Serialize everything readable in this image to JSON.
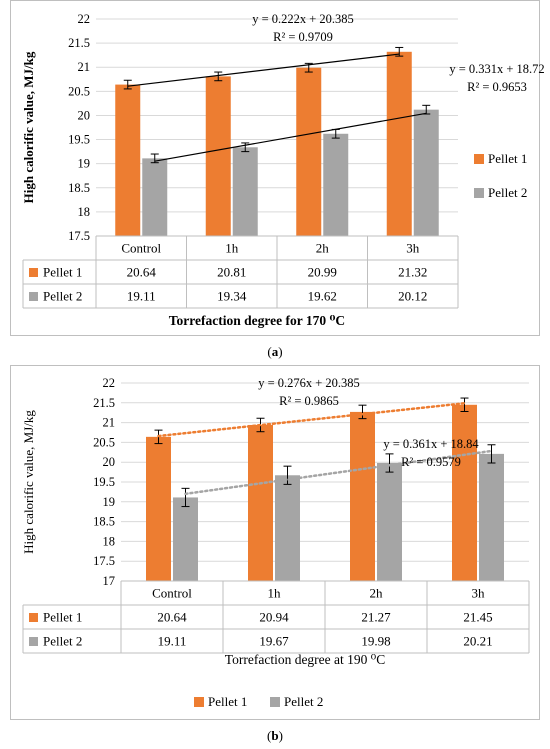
{
  "chart_data": [
    {
      "type": "bar",
      "panel": "a",
      "categories": [
        "Control",
        "1h",
        "2h",
        "3h"
      ],
      "series": [
        {
          "name": "Pellet 1",
          "values": [
            20.64,
            20.81,
            20.99,
            21.32
          ],
          "color": "#ed7d31",
          "error": 0.09
        },
        {
          "name": "Pellet 2",
          "values": [
            19.11,
            19.34,
            19.62,
            20.12
          ],
          "color": "#a5a5a5",
          "error": 0.09
        }
      ],
      "ylabel": "High calorific value, MJ/kg",
      "xlabel": "Torrefaction degree for 170 ⁰C",
      "ylim": [
        17.5,
        22
      ],
      "yticks": [
        "17.5",
        "18",
        "18.5",
        "19",
        "19.5",
        "20",
        "20.5",
        "21",
        "21.5",
        "22"
      ],
      "trendlines": [
        {
          "series": "Pellet 1",
          "equation": "y = 0.222x + 20.385",
          "r2": "R² = 0.9709",
          "style": "solid",
          "color": "#000000"
        },
        {
          "series": "Pellet 2",
          "equation": "y = 0.331x + 18.72",
          "r2": "R² = 0.9653",
          "style": "solid",
          "color": "#000000"
        }
      ],
      "legend_position": "right",
      "grid": true,
      "caption": "a"
    },
    {
      "type": "bar",
      "panel": "b",
      "categories": [
        "Control",
        "1h",
        "2h",
        "3h"
      ],
      "series": [
        {
          "name": "Pellet 1",
          "values": [
            20.64,
            20.94,
            21.27,
            21.45
          ],
          "color": "#ed7d31",
          "error": 0.17
        },
        {
          "name": "Pellet 2",
          "values": [
            19.11,
            19.67,
            19.98,
            20.21
          ],
          "color": "#a5a5a5",
          "error": 0.23
        }
      ],
      "ylabel": "High calorific value, MJ/kg",
      "xlabel": "Torrefaction degree at 190 ⁰C",
      "ylim": [
        17,
        22
      ],
      "yticks": [
        "17",
        "17.5",
        "18",
        "18.5",
        "19",
        "19.5",
        "20",
        "20.5",
        "21",
        "21.5",
        "22"
      ],
      "trendlines": [
        {
          "series": "Pellet 1",
          "equation": "y = 0.276x + 20.385",
          "r2": "R² = 0.9865",
          "style": "dotted",
          "color": "#ed7d31"
        },
        {
          "series": "Pellet 2",
          "equation": "y = 0.361x + 18.84",
          "r2": "R² = 0.9579",
          "style": "dotted",
          "color": "#a5a5a5"
        }
      ],
      "legend_position": "bottom",
      "grid": true,
      "caption": "b"
    }
  ]
}
